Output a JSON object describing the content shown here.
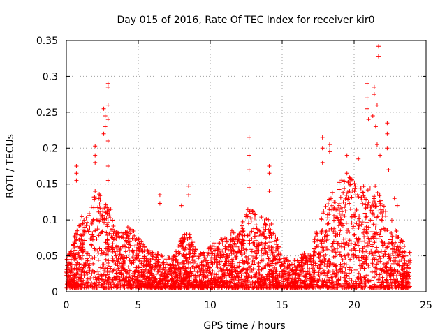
{
  "chart_data": {
    "type": "scatter",
    "title": "Day 015 of 2016, Rate Of TEC Index for receiver kir0",
    "xlabel": "GPS time / hours",
    "ylabel": "ROTI / TECUs",
    "xlim": [
      0,
      25
    ],
    "ylim": [
      0,
      0.35
    ],
    "xticks": [
      0,
      5,
      10,
      15,
      20,
      25
    ],
    "xtick_labels": [
      "0",
      "5",
      "10",
      "15",
      "20",
      "25"
    ],
    "yticks": [
      0,
      0.05,
      0.1,
      0.15,
      0.2,
      0.25,
      0.3,
      0.35
    ],
    "ytick_labels": [
      "0",
      "0.05",
      "0.1",
      "0.15",
      "0.2",
      "0.25",
      "0.3",
      "0.35"
    ],
    "grid": true,
    "marker": "+",
    "color": "#ff0000",
    "envelope": {
      "x": [
        0,
        0.5,
        1,
        1.5,
        2,
        2.5,
        3,
        3.5,
        4,
        4.5,
        5,
        5.5,
        6,
        6.5,
        7,
        7.5,
        8,
        8.5,
        9,
        9.5,
        10,
        10.5,
        11,
        11.5,
        12,
        12.5,
        13,
        13.5,
        14,
        14.5,
        15,
        15.5,
        16,
        16.5,
        17,
        17.5,
        18,
        18.5,
        19,
        19.5,
        20,
        20.5,
        21,
        21.5,
        22,
        22.5,
        23,
        23.5,
        23.9
      ],
      "y_max": [
        0.04,
        0.07,
        0.1,
        0.1,
        0.14,
        0.13,
        0.12,
        0.08,
        0.08,
        0.09,
        0.07,
        0.06,
        0.05,
        0.05,
        0.04,
        0.05,
        0.07,
        0.08,
        0.06,
        0.05,
        0.06,
        0.07,
        0.07,
        0.08,
        0.08,
        0.11,
        0.11,
        0.1,
        0.1,
        0.08,
        0.05,
        0.04,
        0.04,
        0.05,
        0.05,
        0.09,
        0.12,
        0.14,
        0.15,
        0.16,
        0.15,
        0.14,
        0.15,
        0.15,
        0.12,
        0.1,
        0.08,
        0.06,
        0.05
      ]
    },
    "spikes": [
      {
        "x": 0.7,
        "y": 0.175
      },
      {
        "x": 0.7,
        "y": 0.165
      },
      {
        "x": 0.7,
        "y": 0.155
      },
      {
        "x": 2.0,
        "y": 0.203
      },
      {
        "x": 2.0,
        "y": 0.19
      },
      {
        "x": 2.0,
        "y": 0.18
      },
      {
        "x": 2.0,
        "y": 0.14
      },
      {
        "x": 2.6,
        "y": 0.255
      },
      {
        "x": 2.7,
        "y": 0.245
      },
      {
        "x": 2.7,
        "y": 0.23
      },
      {
        "x": 2.6,
        "y": 0.22
      },
      {
        "x": 2.9,
        "y": 0.29
      },
      {
        "x": 2.9,
        "y": 0.285
      },
      {
        "x": 2.9,
        "y": 0.26
      },
      {
        "x": 2.9,
        "y": 0.24
      },
      {
        "x": 2.9,
        "y": 0.21
      },
      {
        "x": 2.9,
        "y": 0.175
      },
      {
        "x": 2.9,
        "y": 0.155
      },
      {
        "x": 6.5,
        "y": 0.135
      },
      {
        "x": 6.5,
        "y": 0.123
      },
      {
        "x": 8.5,
        "y": 0.147
      },
      {
        "x": 8.5,
        "y": 0.135
      },
      {
        "x": 8.0,
        "y": 0.12
      },
      {
        "x": 12.7,
        "y": 0.215
      },
      {
        "x": 12.7,
        "y": 0.19
      },
      {
        "x": 12.7,
        "y": 0.17
      },
      {
        "x": 12.7,
        "y": 0.145
      },
      {
        "x": 14.1,
        "y": 0.175
      },
      {
        "x": 14.1,
        "y": 0.165
      },
      {
        "x": 14.1,
        "y": 0.14
      },
      {
        "x": 17.8,
        "y": 0.215
      },
      {
        "x": 17.8,
        "y": 0.2
      },
      {
        "x": 17.8,
        "y": 0.18
      },
      {
        "x": 18.3,
        "y": 0.205
      },
      {
        "x": 18.3,
        "y": 0.195
      },
      {
        "x": 19.5,
        "y": 0.19
      },
      {
        "x": 19.5,
        "y": 0.165
      },
      {
        "x": 20.3,
        "y": 0.185
      },
      {
        "x": 20.9,
        "y": 0.29
      },
      {
        "x": 20.9,
        "y": 0.27
      },
      {
        "x": 20.9,
        "y": 0.255
      },
      {
        "x": 21.0,
        "y": 0.24
      },
      {
        "x": 21.4,
        "y": 0.285
      },
      {
        "x": 21.4,
        "y": 0.275
      },
      {
        "x": 21.3,
        "y": 0.245
      },
      {
        "x": 21.5,
        "y": 0.23
      },
      {
        "x": 21.6,
        "y": 0.26
      },
      {
        "x": 21.7,
        "y": 0.342
      },
      {
        "x": 21.7,
        "y": 0.328
      },
      {
        "x": 21.6,
        "y": 0.205
      },
      {
        "x": 21.8,
        "y": 0.19
      },
      {
        "x": 22.3,
        "y": 0.235
      },
      {
        "x": 22.3,
        "y": 0.22
      },
      {
        "x": 22.3,
        "y": 0.2
      },
      {
        "x": 22.4,
        "y": 0.17
      },
      {
        "x": 22.8,
        "y": 0.13
      },
      {
        "x": 23.0,
        "y": 0.12
      }
    ]
  }
}
